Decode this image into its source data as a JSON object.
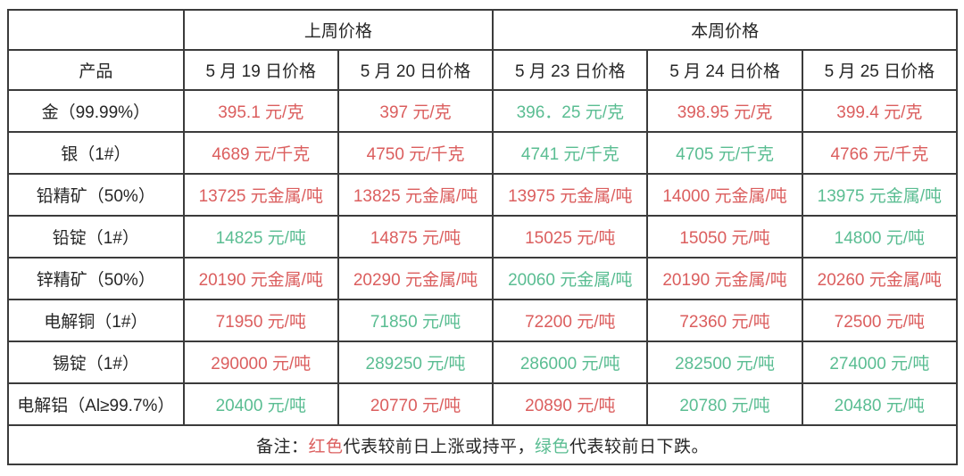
{
  "colors": {
    "red": "#db5e5e",
    "green": "#5abd92",
    "text": "#262626",
    "border": "#3b3b3b"
  },
  "table": {
    "week_headers": [
      {
        "label": "上周价格",
        "span": 2
      },
      {
        "label": "本周价格",
        "span": 3
      }
    ],
    "product_header": "产品",
    "date_headers": [
      "5 月 19 日价格",
      "5 月 20 日价格",
      "5 月 23 日价格",
      "5 月 24 日价格",
      "5 月 25 日价格"
    ],
    "rows": [
      {
        "product": "金（99.99%）",
        "values": [
          {
            "text": "395.1 元/克",
            "trend": "up"
          },
          {
            "text": "397 元/克",
            "trend": "up"
          },
          {
            "text": "396．25 元/克",
            "trend": "down"
          },
          {
            "text": "398.95 元/克",
            "trend": "up"
          },
          {
            "text": "399.4 元/克",
            "trend": "up"
          }
        ]
      },
      {
        "product": "银（1#）",
        "values": [
          {
            "text": "4689 元/千克",
            "trend": "up"
          },
          {
            "text": "4750 元/千克",
            "trend": "up"
          },
          {
            "text": "4741 元/千克",
            "trend": "down"
          },
          {
            "text": "4705 元/千克",
            "trend": "down"
          },
          {
            "text": "4766 元/千克",
            "trend": "up"
          }
        ]
      },
      {
        "product": "铅精矿（50%）",
        "values": [
          {
            "text": "13725 元金属/吨",
            "trend": "up"
          },
          {
            "text": "13825 元金属/吨",
            "trend": "up"
          },
          {
            "text": "13975 元金属/吨",
            "trend": "up"
          },
          {
            "text": "14000 元金属/吨",
            "trend": "up"
          },
          {
            "text": "13975 元金属/吨",
            "trend": "down"
          }
        ]
      },
      {
        "product": "铅锭（1#）",
        "values": [
          {
            "text": "14825 元/吨",
            "trend": "down"
          },
          {
            "text": "14875 元/吨",
            "trend": "up"
          },
          {
            "text": "15025 元/吨",
            "trend": "up"
          },
          {
            "text": "15050 元/吨",
            "trend": "up"
          },
          {
            "text": "14800 元/吨",
            "trend": "down"
          }
        ]
      },
      {
        "product": "锌精矿（50%）",
        "values": [
          {
            "text": "20190 元金属/吨",
            "trend": "up"
          },
          {
            "text": "20290 元金属/吨",
            "trend": "up"
          },
          {
            "text": "20060 元金属/吨",
            "trend": "down"
          },
          {
            "text": "20190 元金属/吨",
            "trend": "up"
          },
          {
            "text": "20260 元金属/吨",
            "trend": "up"
          }
        ]
      },
      {
        "product": "电解铜（1#）",
        "values": [
          {
            "text": "71950 元/吨",
            "trend": "up"
          },
          {
            "text": "71850 元/吨",
            "trend": "down"
          },
          {
            "text": "72200 元/吨",
            "trend": "up"
          },
          {
            "text": "72360 元/吨",
            "trend": "up"
          },
          {
            "text": "72500 元/吨",
            "trend": "up"
          }
        ]
      },
      {
        "product": "锡锭（1#）",
        "values": [
          {
            "text": "290000 元/吨",
            "trend": "up"
          },
          {
            "text": "289250 元/吨",
            "trend": "down"
          },
          {
            "text": "286000 元/吨",
            "trend": "down"
          },
          {
            "text": "282500 元/吨",
            "trend": "down"
          },
          {
            "text": "274000 元/吨",
            "trend": "down"
          }
        ]
      },
      {
        "product": "电解铝（Al≥99.7%）",
        "values": [
          {
            "text": "20400 元/吨",
            "trend": "down"
          },
          {
            "text": "20770 元/吨",
            "trend": "up"
          },
          {
            "text": "20890 元/吨",
            "trend": "up"
          },
          {
            "text": "20780 元/吨",
            "trend": "down"
          },
          {
            "text": "20480 元/吨",
            "trend": "down"
          }
        ]
      }
    ]
  },
  "footnote": {
    "prefix": "备注：",
    "red_word": "红色",
    "red_desc": "代表较前日上涨或持平，",
    "green_word": "绿色",
    "green_desc": "代表较前日下跌。"
  }
}
